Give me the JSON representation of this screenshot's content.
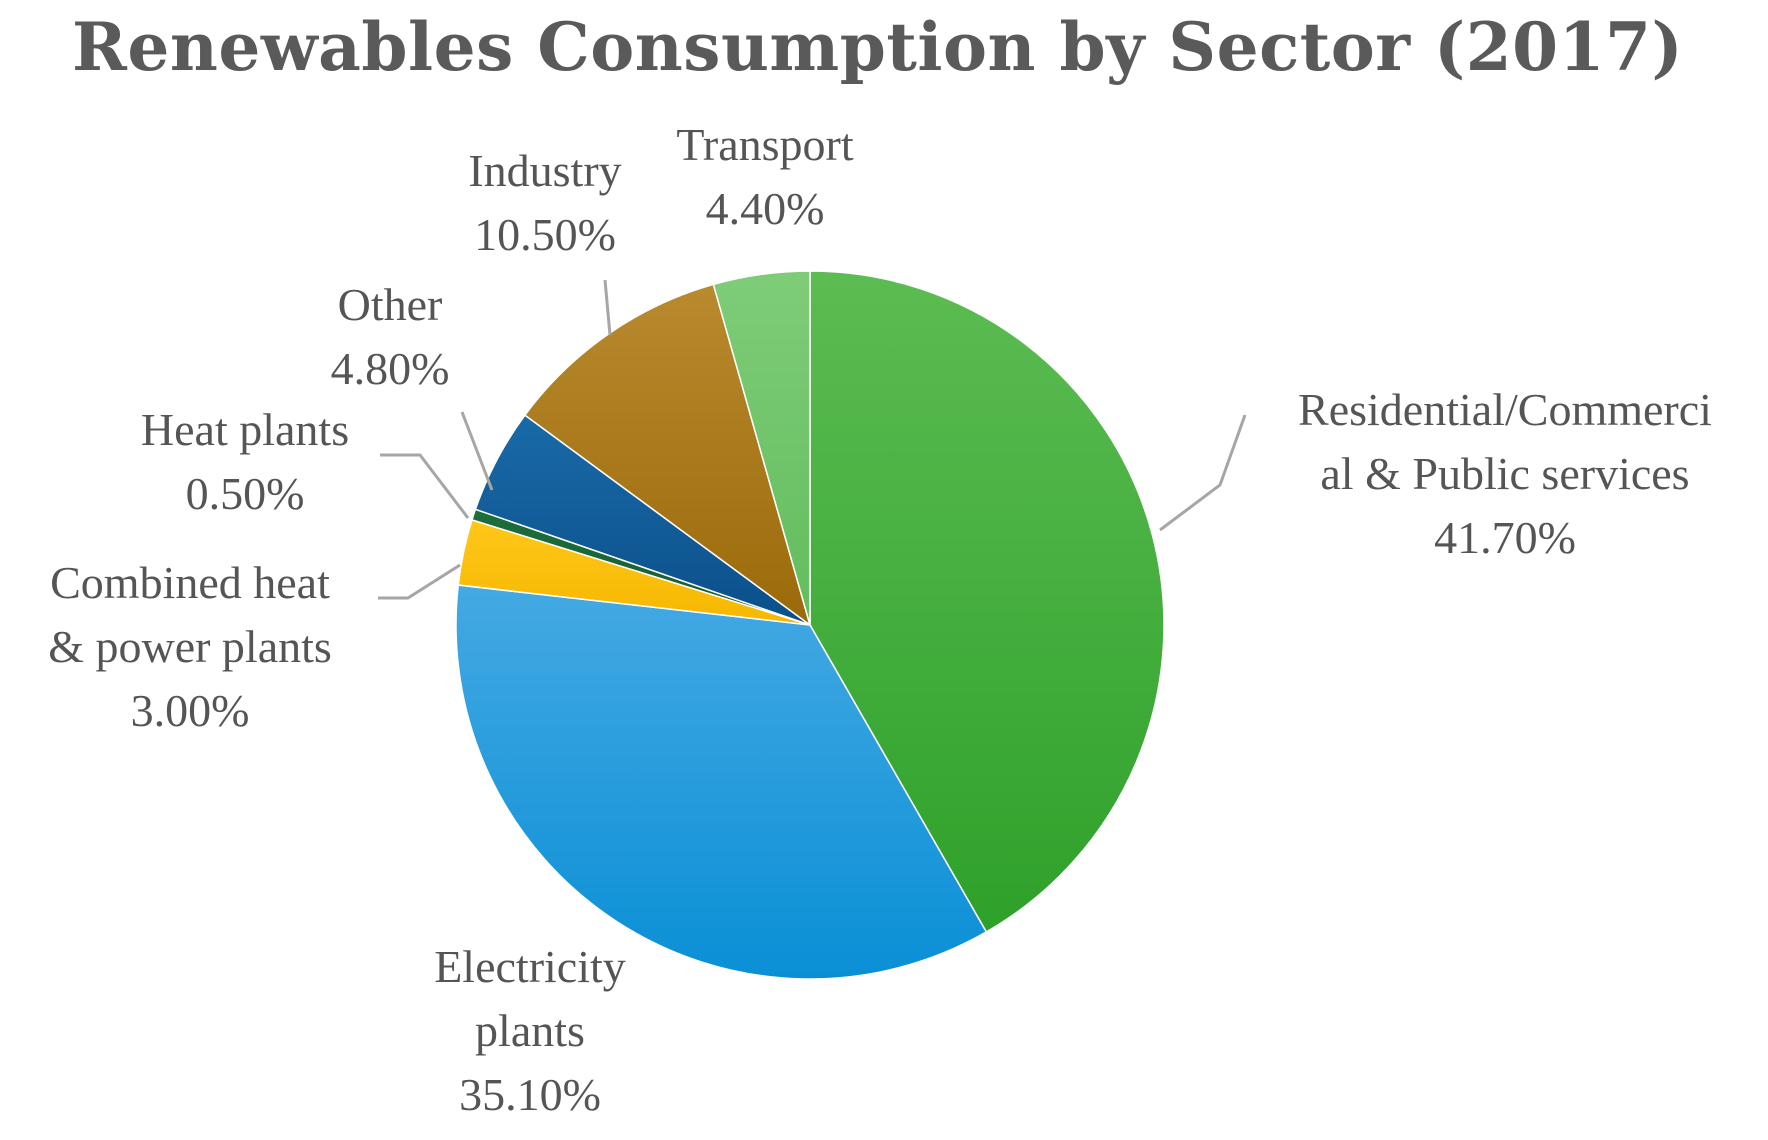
{
  "chart_data": {
    "type": "pie",
    "title": "Renewables Consumption by Sector (2017)",
    "slices": [
      {
        "name": "Residential/Commercial & Public services",
        "label_lines": [
          "Residential/Commerci",
          "al & Public services"
        ],
        "value": 41.7,
        "value_label": "41.70%",
        "color_top": "#5cbc52",
        "color_bottom": "#2ea12a"
      },
      {
        "name": "Electricity plants",
        "label_lines": [
          "Electricity",
          "plants"
        ],
        "value": 35.1,
        "value_label": "35.10%",
        "color_top": "#44a9e3",
        "color_bottom": "#0a8fd6"
      },
      {
        "name": "Combined heat & power plants",
        "label_lines": [
          "Combined heat",
          "& power plants"
        ],
        "value": 3.0,
        "value_label": "3.00%",
        "color_top": "#ffc71a",
        "color_bottom": "#f5b800"
      },
      {
        "name": "Heat plants",
        "label_lines": [
          "Heat plants"
        ],
        "value": 0.5,
        "value_label": "0.50%",
        "color_top": "#1e6e3c",
        "color_bottom": "#145a30"
      },
      {
        "name": "Other",
        "label_lines": [
          "Other"
        ],
        "value": 4.8,
        "value_label": "4.80%",
        "color_top": "#1a6aa8",
        "color_bottom": "#0a4f8a"
      },
      {
        "name": "Industry",
        "label_lines": [
          "Industry"
        ],
        "value": 10.5,
        "value_label": "10.50%",
        "color_top": "#b98a2e",
        "color_bottom": "#9a6a0a"
      },
      {
        "name": "Transport",
        "label_lines": [
          "Transport"
        ],
        "value": 4.4,
        "value_label": "4.40%",
        "color_top": "#7fcc78",
        "color_bottom": "#62bd5c"
      }
    ],
    "start_angle_deg": 0,
    "direction": "clockwise",
    "legend": "none"
  }
}
